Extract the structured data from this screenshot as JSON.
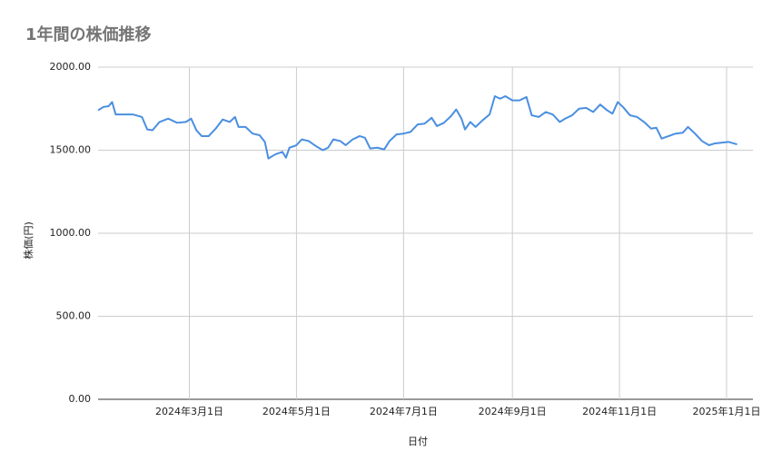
{
  "chart_data": {
    "type": "line",
    "title": "1年間の株価推移",
    "x_label": "日付",
    "y_label": "株価(円)",
    "x": [
      "2024-01-09",
      "2024-01-12",
      "2024-01-15",
      "2024-01-17",
      "2024-01-19",
      "2024-01-24",
      "2024-01-29",
      "2024-02-03",
      "2024-02-06",
      "2024-02-09",
      "2024-02-13",
      "2024-02-18",
      "2024-02-23",
      "2024-02-28",
      "2024-03-02",
      "2024-03-05",
      "2024-03-08",
      "2024-03-12",
      "2024-03-16",
      "2024-03-20",
      "2024-03-24",
      "2024-03-27",
      "2024-03-29",
      "2024-04-02",
      "2024-04-06",
      "2024-04-10",
      "2024-04-13",
      "2024-04-15",
      "2024-04-19",
      "2024-04-23",
      "2024-04-25",
      "2024-04-27",
      "2024-05-01",
      "2024-05-04",
      "2024-05-08",
      "2024-05-12",
      "2024-05-16",
      "2024-05-19",
      "2024-05-22",
      "2024-05-26",
      "2024-05-29",
      "2024-06-02",
      "2024-06-06",
      "2024-06-09",
      "2024-06-12",
      "2024-06-16",
      "2024-06-20",
      "2024-06-23",
      "2024-06-27",
      "2024-07-01",
      "2024-07-05",
      "2024-07-09",
      "2024-07-13",
      "2024-07-17",
      "2024-07-20",
      "2024-07-24",
      "2024-07-28",
      "2024-07-31",
      "2024-08-03",
      "2024-08-05",
      "2024-08-08",
      "2024-08-11",
      "2024-08-15",
      "2024-08-19",
      "2024-08-22",
      "2024-08-25",
      "2024-08-28",
      "2024-09-01",
      "2024-09-05",
      "2024-09-09",
      "2024-09-12",
      "2024-09-16",
      "2024-09-20",
      "2024-09-24",
      "2024-09-28",
      "2024-10-01",
      "2024-10-05",
      "2024-10-09",
      "2024-10-13",
      "2024-10-17",
      "2024-10-21",
      "2024-10-25",
      "2024-10-28",
      "2024-10-31",
      "2024-11-03",
      "2024-11-07",
      "2024-11-11",
      "2024-11-15",
      "2024-11-19",
      "2024-11-22",
      "2024-11-25",
      "2024-11-29",
      "2024-12-03",
      "2024-12-07",
      "2024-12-10",
      "2024-12-14",
      "2024-12-18",
      "2024-12-22",
      "2024-12-25",
      "2024-12-29",
      "2025-01-02",
      "2025-01-07"
    ],
    "series": [
      {
        "color": "#4a8fe0",
        "values": [
          1740,
          1760,
          1765,
          1790,
          1715,
          1715,
          1715,
          1700,
          1625,
          1620,
          1670,
          1690,
          1665,
          1670,
          1690,
          1620,
          1585,
          1585,
          1630,
          1685,
          1670,
          1700,
          1640,
          1640,
          1600,
          1590,
          1550,
          1450,
          1475,
          1490,
          1455,
          1515,
          1530,
          1565,
          1555,
          1525,
          1500,
          1515,
          1565,
          1555,
          1530,
          1565,
          1585,
          1575,
          1510,
          1515,
          1505,
          1555,
          1595,
          1600,
          1610,
          1655,
          1660,
          1695,
          1645,
          1665,
          1705,
          1745,
          1690,
          1625,
          1670,
          1640,
          1680,
          1715,
          1825,
          1810,
          1825,
          1800,
          1800,
          1820,
          1710,
          1700,
          1730,
          1715,
          1670,
          1690,
          1710,
          1750,
          1755,
          1730,
          1775,
          1740,
          1720,
          1790,
          1760,
          1710,
          1700,
          1670,
          1630,
          1635,
          1570,
          1585,
          1600,
          1605,
          1640,
          1600,
          1555,
          1530,
          1540,
          1545,
          1550,
          1535
        ]
      }
    ],
    "xlim": [
      "2024-01-09",
      "2025-01-16"
    ],
    "xticks": [
      {
        "value": "2024-03-01",
        "label": "2024年3月1日"
      },
      {
        "value": "2024-05-01",
        "label": "2024年5月1日"
      },
      {
        "value": "2024-07-01",
        "label": "2024年7月1日"
      },
      {
        "value": "2024-09-01",
        "label": "2024年9月1日"
      },
      {
        "value": "2024-11-01",
        "label": "2024年11月1日"
      },
      {
        "value": "2025-01-01",
        "label": "2025年1月1日"
      }
    ],
    "ylim": [
      0,
      2000
    ],
    "yticks": [
      {
        "value": 0,
        "label": "0.00"
      },
      {
        "value": 500,
        "label": "500.00"
      },
      {
        "value": 1000,
        "label": "1000.00"
      },
      {
        "value": 1500,
        "label": "1500.00"
      },
      {
        "value": 2000,
        "label": "2000.00"
      }
    ],
    "grid": true
  }
}
